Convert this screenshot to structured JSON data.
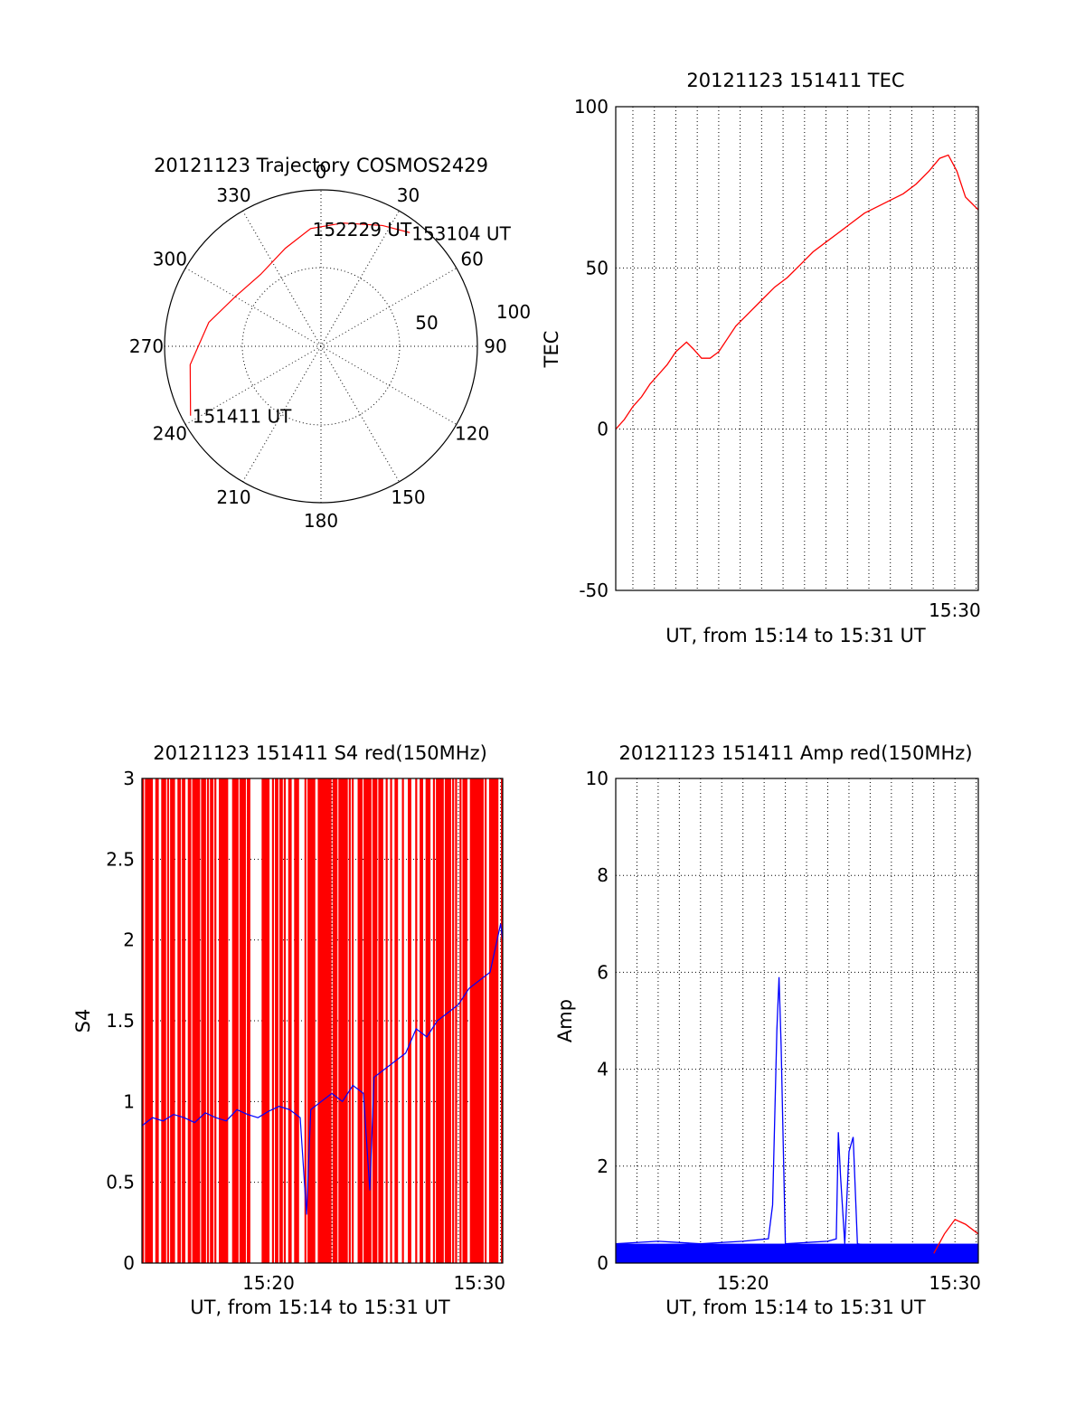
{
  "chart_data": [
    {
      "type": "polar",
      "title": "20121123 Trajectory COSMOS2429",
      "angle_labels": [
        "0",
        "30",
        "60",
        "90",
        "120",
        "150",
        "180",
        "210",
        "240",
        "270",
        "300",
        "330"
      ],
      "radial_labels": [
        "50",
        "100"
      ],
      "grid": true,
      "trajectory": {
        "color": "#ff0000",
        "points": [
          {
            "az": 242,
            "elev_from_center": 85,
            "label": "151411 UT"
          },
          {
            "az": 262,
            "elev_from_center": 76
          },
          {
            "az": 282,
            "elev_from_center": 66
          },
          {
            "az": 300,
            "elev_from_center": 57
          },
          {
            "az": 320,
            "elev_from_center": 54
          },
          {
            "az": 340,
            "elev_from_center": 60
          },
          {
            "az": 355,
            "elev_from_center": 68,
            "label": "152229 UT"
          },
          {
            "az": 10,
            "elev_from_center": 72
          },
          {
            "az": 27,
            "elev_from_center": 78
          },
          {
            "az": 38,
            "elev_from_center": 83,
            "label": "153104 UT"
          }
        ]
      }
    },
    {
      "type": "line",
      "title": "20121123 151411 TEC",
      "ylabel": "TEC",
      "xlabel": "UT, from 15:14 to 15:31 UT",
      "ylim": [
        -50,
        100
      ],
      "yticks": [
        "-50",
        "0",
        "50",
        "100"
      ],
      "xtick_labels": [
        "15:30"
      ],
      "x_range_minutes": [
        14.2,
        31.1
      ],
      "grid": true,
      "series": [
        {
          "color": "#ff0000",
          "x": [
            14.2,
            14.6,
            15.0,
            15.4,
            15.8,
            16.2,
            16.6,
            17.0,
            17.5,
            17.8,
            18.2,
            18.6,
            19.0,
            19.4,
            19.8,
            20.4,
            21.0,
            21.6,
            22.2,
            22.8,
            23.4,
            24.0,
            24.6,
            25.2,
            25.8,
            26.4,
            27.0,
            27.6,
            28.2,
            28.8,
            29.3,
            29.7,
            30.1,
            30.5,
            30.8,
            31.1
          ],
          "values": [
            0,
            3,
            7,
            10,
            14,
            17,
            20,
            24,
            27,
            25,
            22,
            22,
            24,
            28,
            32,
            36,
            40,
            44,
            47,
            51,
            55,
            58,
            61,
            64,
            67,
            69,
            71,
            73,
            76,
            80,
            84,
            85,
            80,
            72,
            70,
            68
          ]
        }
      ]
    },
    {
      "type": "line",
      "title": "20121123 151411 S4 red(150MHz)",
      "ylabel": "S4",
      "xlabel": "UT, from 15:14 to 15:31 UT",
      "ylim": [
        0,
        3
      ],
      "yticks": [
        "0",
        "0.5",
        "1",
        "1.5",
        "2",
        "2.5",
        "3"
      ],
      "xtick_labels": [
        "15:20",
        "15:30"
      ],
      "x_range_minutes": [
        14.0,
        31.1
      ],
      "grid": true,
      "series": [
        {
          "color": "#ff0000",
          "note_style": "dense spikes 0 to 3",
          "x": [
            14.0,
            31.1
          ],
          "values": [
            0,
            3
          ]
        },
        {
          "color": "#0000ff",
          "x": [
            14.0,
            14.5,
            15.0,
            15.5,
            16.0,
            16.5,
            17.0,
            17.5,
            18.0,
            18.5,
            19.0,
            19.5,
            20.0,
            20.5,
            21.0,
            21.5,
            21.8,
            22.0,
            22.5,
            23.0,
            23.5,
            24.0,
            24.5,
            24.8,
            25.0,
            25.5,
            26.0,
            26.5,
            27.0,
            27.5,
            28.0,
            28.5,
            29.0,
            29.5,
            30.0,
            30.5,
            31.0,
            31.1
          ],
          "values": [
            0.85,
            0.9,
            0.88,
            0.92,
            0.9,
            0.87,
            0.93,
            0.9,
            0.88,
            0.95,
            0.92,
            0.9,
            0.94,
            0.97,
            0.95,
            0.9,
            0.3,
            0.95,
            1.0,
            1.05,
            1.0,
            1.1,
            1.05,
            0.45,
            1.15,
            1.2,
            1.25,
            1.3,
            1.45,
            1.4,
            1.5,
            1.55,
            1.6,
            1.7,
            1.75,
            1.8,
            2.1,
            2.0
          ]
        }
      ]
    },
    {
      "type": "line",
      "title": "20121123 151411 Amp red(150MHz)",
      "ylabel": "Amp",
      "xlabel": "UT, from 15:14 to 15:31 UT",
      "ylim": [
        0,
        10
      ],
      "yticks": [
        "0",
        "2",
        "4",
        "6",
        "8",
        "10"
      ],
      "xtick_labels": [
        "15:20",
        "15:30"
      ],
      "x_range_minutes": [
        14.0,
        31.1
      ],
      "grid": true,
      "series": [
        {
          "color": "#0000ff",
          "x": [
            14.0,
            16.0,
            18.0,
            20.0,
            21.2,
            21.4,
            21.6,
            21.7,
            21.8,
            22.0,
            24.0,
            24.4,
            24.5,
            24.6,
            24.8,
            25.0,
            25.2,
            25.4,
            26.0,
            28.0,
            30.0,
            31.1
          ],
          "values": [
            0.4,
            0.45,
            0.4,
            0.45,
            0.5,
            1.2,
            4.8,
            5.9,
            4.5,
            0.4,
            0.45,
            0.5,
            2.7,
            1.8,
            0.4,
            2.3,
            2.6,
            0.4,
            0.35,
            0.3,
            0.3,
            0.3
          ]
        },
        {
          "color": "#ff0000",
          "x": [
            29.0,
            29.5,
            30.0,
            30.5,
            31.1
          ],
          "values": [
            0.2,
            0.6,
            0.9,
            0.8,
            0.6
          ]
        }
      ]
    }
  ]
}
